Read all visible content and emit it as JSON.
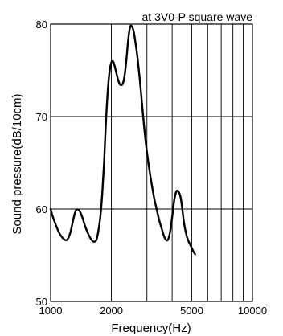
{
  "chart_data": {
    "type": "line",
    "title": "at 3V0-P square wave",
    "xlabel": "Frequency(Hz)",
    "ylabel": "Sound pressure(dB/10cm)",
    "x_scale": "log",
    "xlim": [
      1000,
      10000
    ],
    "ylim": [
      50,
      80
    ],
    "x_ticks": [
      1000,
      2000,
      5000,
      10000
    ],
    "x_tick_labels": [
      "1000",
      "2000",
      "5000",
      "10000"
    ],
    "y_ticks": [
      50,
      60,
      70,
      80
    ],
    "y_tick_labels": [
      "50",
      "60",
      "70",
      "80"
    ],
    "grid": true,
    "line_color": "#000000",
    "series": [
      {
        "x": [
          1000,
          1020,
          1060,
          1110,
          1170,
          1210,
          1250,
          1290,
          1330,
          1380,
          1430,
          1490,
          1560,
          1620,
          1680,
          1720,
          1760,
          1800,
          1840,
          1880,
          1930,
          1980,
          2030,
          2080,
          2140,
          2200,
          2270,
          2320,
          2370,
          2420,
          2470,
          2520,
          2580,
          2640,
          2700,
          2780,
          2860,
          2950,
          3050,
          3150,
          3250,
          3350,
          3450,
          3560,
          3670,
          3780,
          3860,
          3940,
          4020,
          4100,
          4200,
          4300,
          4400,
          4480,
          4560,
          4640,
          4720,
          4800,
          4900,
          5000,
          5100,
          5200
        ],
        "y": [
          60.0,
          59.3,
          58.3,
          57.3,
          56.7,
          56.7,
          57.4,
          58.7,
          59.8,
          59.9,
          59.2,
          58.0,
          57.0,
          56.5,
          56.6,
          57.5,
          59.0,
          61.5,
          65.0,
          69.5,
          73.5,
          75.5,
          76.0,
          75.4,
          74.3,
          73.5,
          73.5,
          74.3,
          76.0,
          78.2,
          79.6,
          79.8,
          79.2,
          77.8,
          76.2,
          73.5,
          70.5,
          67.5,
          65.0,
          63.0,
          61.3,
          60.0,
          58.8,
          57.8,
          56.9,
          56.6,
          57.0,
          58.0,
          59.5,
          61.0,
          61.9,
          61.9,
          61.3,
          60.2,
          58.8,
          57.8,
          57.1,
          56.6,
          56.2,
          55.8,
          55.4,
          55.1
        ]
      }
    ]
  }
}
